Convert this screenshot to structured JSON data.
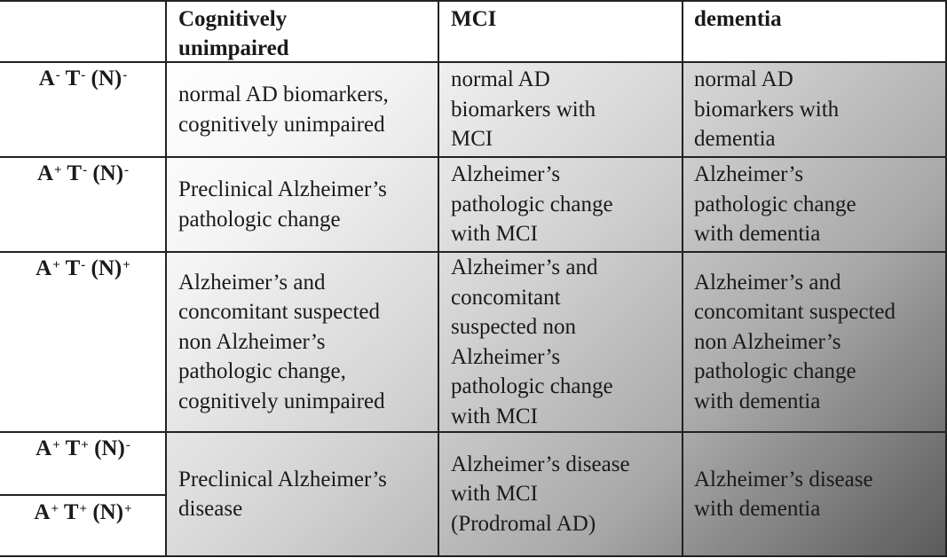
{
  "table": {
    "headers": [
      "",
      "Cognitively\nunimpaired",
      "MCI",
      "dementia"
    ],
    "rows": [
      {
        "code": {
          "a": "A",
          "a_sup": "-",
          "t": "T",
          "t_sup": "-",
          "n": "(N)",
          "n_sup": "-"
        },
        "cells": [
          "normal AD biomarkers,\ncognitively unimpaired",
          "normal AD\nbiomarkers with\nMCI",
          "normal AD\nbiomarkers with\ndementia"
        ]
      },
      {
        "code": {
          "a": "A",
          "a_sup": "+",
          "t": "T",
          "t_sup": "-",
          "n": "(N)",
          "n_sup": "-"
        },
        "cells": [
          "Preclinical Alzheimer’s\npathologic change",
          "Alzheimer’s\npathologic change\nwith MCI",
          "Alzheimer’s\npathologic change\nwith dementia"
        ]
      },
      {
        "code": {
          "a": "A",
          "a_sup": "+",
          "t": "T",
          "t_sup": "-",
          "n": "(N)",
          "n_sup": "+"
        },
        "cells": [
          "Alzheimer’s and\nconcomitant suspected\nnon Alzheimer’s\npathologic change,\ncognitively unimpaired",
          "Alzheimer’s and\nconcomitant\nsuspected non\nAlzheimer’s\npathologic change\nwith MCI",
          "Alzheimer’s and\nconcomitant suspected\nnon Alzheimer’s\npathologic change\nwith dementia"
        ]
      },
      {
        "codes": [
          {
            "a": "A",
            "a_sup": "+",
            "t": "T",
            "t_sup": "+",
            "n": "(N)",
            "n_sup": "-"
          },
          {
            "a": "A",
            "a_sup": "+",
            "t": "T",
            "t_sup": "+",
            "n": "(N)",
            "n_sup": "+"
          }
        ],
        "cells": [
          "Preclinical Alzheimer’s\ndisease",
          "Alzheimer’s disease\nwith  MCI\n(Prodromal AD)",
          "Alzheimer’s disease\nwith  dementia"
        ]
      }
    ]
  }
}
